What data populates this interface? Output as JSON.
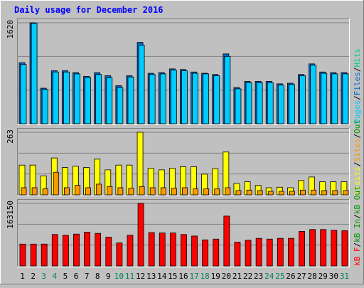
{
  "title": "Daily usage for December 2016",
  "colors": {
    "background": "#c0c0c0",
    "plot_bg": "#c0c0c0",
    "title": "#0000ff",
    "pages": "#00ccff",
    "files": "#0066cc",
    "hits": "#00cc99",
    "visits": "#ffff00",
    "sites": "#ff9900",
    "kbin": "#009900",
    "kbf": "#ff0000",
    "weekend": "#00805c",
    "weekday": "#000000"
  },
  "chart_data": [
    {
      "type": "bar",
      "panel": "top",
      "axis_max_label": "1620",
      "ylim": [
        0,
        1620
      ],
      "legend": [
        {
          "text": "Pages",
          "color": "#00ccff"
        },
        {
          "text": "/",
          "color": "#000000"
        },
        {
          "text": "Files",
          "color": "#0066cc"
        },
        {
          "text": "/",
          "color": "#000000"
        },
        {
          "text": "Hits",
          "color": "#00cc99"
        }
      ],
      "categories": [
        "1",
        "2",
        "3",
        "4",
        "5",
        "6",
        "7",
        "8",
        "9",
        "10",
        "11",
        "12",
        "13",
        "14",
        "15",
        "16",
        "17",
        "18",
        "19",
        "20",
        "21",
        "22",
        "23",
        "24",
        "25",
        "26",
        "27",
        "28",
        "29",
        "30",
        "31"
      ],
      "series": [
        {
          "name": "Hits",
          "values": [
            980,
            1620,
            570,
            850,
            850,
            820,
            760,
            820,
            770,
            610,
            770,
            1305,
            810,
            820,
            880,
            870,
            830,
            810,
            790,
            1120,
            580,
            680,
            680,
            680,
            640,
            650,
            790,
            960,
            830,
            820,
            820
          ]
        },
        {
          "name": "Files",
          "values": [
            950,
            1610,
            550,
            830,
            830,
            800,
            740,
            790,
            740,
            580,
            750,
            1260,
            790,
            800,
            860,
            850,
            810,
            800,
            770,
            1080,
            560,
            660,
            660,
            660,
            620,
            630,
            770,
            940,
            810,
            800,
            800
          ]
        }
      ]
    },
    {
      "type": "bar",
      "panel": "middle",
      "axis_max_label": "263",
      "ylim": [
        0,
        263
      ],
      "legend": [
        {
          "text": "Visits",
          "color": "#ffff00"
        },
        {
          "text": "/",
          "color": "#000000"
        },
        {
          "text": "Sites",
          "color": "#ff9900"
        },
        {
          "text": "/",
          "color": "#000000"
        },
        {
          "text": "Out",
          "color": "#009900"
        }
      ],
      "categories": [
        "1",
        "2",
        "3",
        "4",
        "5",
        "6",
        "7",
        "8",
        "9",
        "10",
        "11",
        "12",
        "13",
        "14",
        "15",
        "16",
        "17",
        "18",
        "19",
        "20",
        "21",
        "22",
        "23",
        "24",
        "25",
        "26",
        "27",
        "28",
        "29",
        "30",
        "31"
      ],
      "series": [
        {
          "name": "Visits",
          "values": [
            125,
            125,
            80,
            155,
            115,
            120,
            115,
            150,
            105,
            125,
            125,
            263,
            112,
            105,
            112,
            118,
            118,
            87,
            110,
            180,
            48,
            55,
            40,
            30,
            32,
            30,
            60,
            75,
            55,
            55,
            55
          ]
        },
        {
          "name": "Sites",
          "values": [
            30,
            30,
            25,
            95,
            30,
            40,
            30,
            45,
            35,
            30,
            28,
            35,
            30,
            30,
            28,
            30,
            25,
            25,
            25,
            30,
            18,
            20,
            18,
            15,
            15,
            15,
            20,
            20,
            18,
            18,
            18
          ]
        }
      ]
    },
    {
      "type": "bar",
      "panel": "bottom",
      "axis_max_label": "163150",
      "ylim": [
        0,
        163150
      ],
      "legend": [
        {
          "text": "kB F",
          "color": "#ff0000"
        },
        {
          "text": "/",
          "color": "#000000"
        },
        {
          "text": "kB In",
          "color": "#009900"
        },
        {
          "text": "/",
          "color": "#000000"
        },
        {
          "text": "kB Out",
          "color": "#009900"
        }
      ],
      "categories": [
        "1",
        "2",
        "3",
        "4",
        "5",
        "6",
        "7",
        "8",
        "9",
        "10",
        "11",
        "12",
        "13",
        "14",
        "15",
        "16",
        "17",
        "18",
        "19",
        "20",
        "21",
        "22",
        "23",
        "24",
        "25",
        "26",
        "27",
        "28",
        "29",
        "30",
        "31"
      ],
      "series": [
        {
          "name": "kB F",
          "values": [
            57000,
            57000,
            57000,
            82000,
            80000,
            83000,
            88000,
            85000,
            75000,
            60000,
            80000,
            163150,
            87000,
            86000,
            86000,
            82000,
            78000,
            68000,
            70000,
            130000,
            62000,
            67000,
            72000,
            70000,
            72000,
            72000,
            90000,
            95000,
            95000,
            93000,
            92000
          ]
        }
      ]
    }
  ],
  "weekend_days": [
    3,
    4,
    10,
    11,
    17,
    18,
    24,
    25,
    31
  ]
}
